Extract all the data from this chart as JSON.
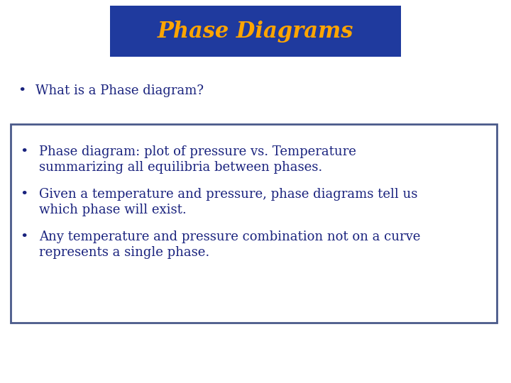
{
  "title": "Phase Diagrams",
  "title_bg_color": "#1f3a9e",
  "title_text_color": "#FFA500",
  "bullet1_text": "What is a Phase diagram?",
  "bullet_text_color": "#1a237e",
  "box_bullet1_line1": "Phase diagram: plot of pressure vs. Temperature",
  "box_bullet1_line2": "summarizing all equilibria between phases.",
  "box_bullet2_line1": "Given a temperature and pressure, phase diagrams tell us",
  "box_bullet2_line2": "which phase will exist.",
  "box_bullet3_line1": "Any temperature and pressure combination not on a curve",
  "box_bullet3_line2": "represents a single phase.",
  "box_border_color": "#4a5a8a",
  "background_color": "#ffffff",
  "font_size_title": 22,
  "font_size_body": 13
}
